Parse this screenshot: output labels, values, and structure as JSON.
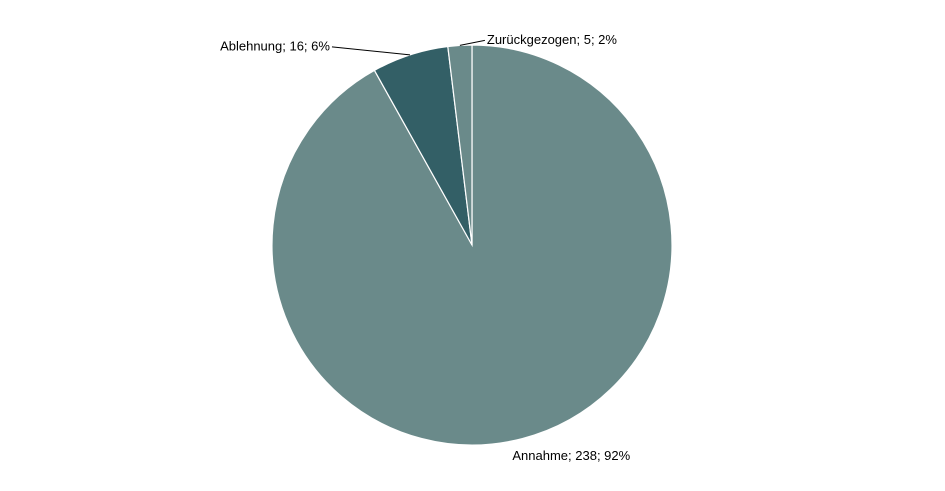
{
  "chart_data": {
    "type": "pie",
    "values": [
      238,
      16,
      5
    ],
    "value_labels": [
      "Annahme; 238; 92%",
      "Ablehnung; 16; 6%",
      "Zurückgezogen; 5; 2%"
    ],
    "colors": [
      "#6a8a8a",
      "#335f66",
      "#6a8a8a"
    ]
  }
}
